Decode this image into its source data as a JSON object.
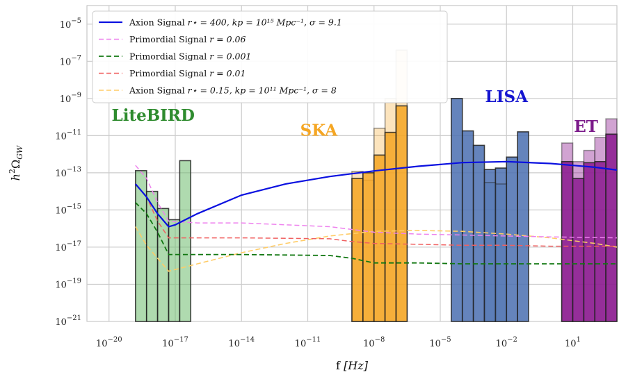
{
  "chart_data": {
    "type": "bar",
    "xscale": "log",
    "yscale": "log",
    "xlim": [
      1e-21,
      1000.0
    ],
    "ylim": [
      1e-21,
      0.0001
    ],
    "grid": true,
    "xlabel_main": "f ",
    "xlabel_unit": "[Hz]",
    "ylabel_main": "h",
    "ylabel_sup": "2",
    "ylabel_sym": "Ω",
    "ylabel_sub": "GW",
    "xticks": [
      {
        "exp": -20,
        "label": "10",
        "sup": "−20"
      },
      {
        "exp": -17,
        "label": "10",
        "sup": "−17"
      },
      {
        "exp": -14,
        "label": "10",
        "sup": "−14"
      },
      {
        "exp": -11,
        "label": "10",
        "sup": "−11"
      },
      {
        "exp": -8,
        "label": "10",
        "sup": "−8"
      },
      {
        "exp": -5,
        "label": "10",
        "sup": "−5"
      },
      {
        "exp": -2,
        "label": "10",
        "sup": "−2"
      },
      {
        "exp": 1,
        "label": "10",
        "sup": "1"
      }
    ],
    "yticks": [
      {
        "exp": -21,
        "label": "10",
        "sup": "−21"
      },
      {
        "exp": -19,
        "label": "10",
        "sup": "−19"
      },
      {
        "exp": -17,
        "label": "10",
        "sup": "−17"
      },
      {
        "exp": -15,
        "label": "10",
        "sup": "−15"
      },
      {
        "exp": -13,
        "label": "10",
        "sup": "−13"
      },
      {
        "exp": -11,
        "label": "10",
        "sup": "−11"
      },
      {
        "exp": -9,
        "label": "10",
        "sup": "−9"
      },
      {
        "exp": -7,
        "label": "10",
        "sup": "−7"
      },
      {
        "exp": -5,
        "label": "10",
        "sup": "−5"
      }
    ],
    "detectors": [
      {
        "name": "LiteBIRD",
        "color": "#3a9a3a",
        "fill": "#6dbb6d",
        "label_logx": -18.0,
        "label_logy": -10.2,
        "bars": [
          {
            "lo": -18.8,
            "hi": -18.3,
            "y": 1.3e-13,
            "alpha": 0.55
          },
          {
            "lo": -18.3,
            "hi": -17.8,
            "y": 1e-14,
            "alpha": 0.55
          },
          {
            "lo": -17.8,
            "hi": -17.3,
            "y": 1.2e-15,
            "alpha": 0.55
          },
          {
            "lo": -17.3,
            "hi": -16.8,
            "y": 3e-16,
            "alpha": 0.55
          },
          {
            "lo": -16.8,
            "hi": -16.3,
            "y": 4.5e-13,
            "alpha": 0.55
          }
        ]
      },
      {
        "name": "SKA",
        "color": "#f5a623",
        "fill": "#f5a623",
        "label_logx": -10.5,
        "label_logy": -11.0,
        "bars": [
          {
            "lo": -9.0,
            "hi": -8.5,
            "y": 1.2e-13,
            "alpha": 0.3
          },
          {
            "lo": -8.5,
            "hi": -8.0,
            "y": 4e-14,
            "alpha": 0.3
          },
          {
            "lo": -8.0,
            "hi": -7.5,
            "y": 2.5e-11,
            "alpha": 0.3
          },
          {
            "lo": -7.5,
            "hi": -7.0,
            "y": 1e-09,
            "alpha": 0.3
          },
          {
            "lo": -7.0,
            "hi": -6.5,
            "y": 4e-07,
            "alpha": 0.3
          },
          {
            "lo": -9.0,
            "hi": -8.5,
            "y": 5e-14,
            "alpha": 0.85
          },
          {
            "lo": -8.5,
            "hi": -8.0,
            "y": 1e-13,
            "alpha": 0.85
          },
          {
            "lo": -8.0,
            "hi": -7.5,
            "y": 9e-13,
            "alpha": 0.85
          },
          {
            "lo": -7.5,
            "hi": -7.0,
            "y": 1.5e-11,
            "alpha": 0.85
          },
          {
            "lo": -7.0,
            "hi": -6.5,
            "y": 4e-10,
            "alpha": 0.85
          }
        ]
      },
      {
        "name": "LISA",
        "color": "#4a6fb0",
        "fill": "#4a6fb0",
        "label_logx": -2.0,
        "label_logy": -9.2,
        "bars": [
          {
            "lo": -4.5,
            "hi": -4.0,
            "y": 1e-09,
            "alpha": 0.85
          },
          {
            "lo": -4.0,
            "hi": -3.5,
            "y": 1.8e-11,
            "alpha": 0.85
          },
          {
            "lo": -3.5,
            "hi": -3.0,
            "y": 3e-12,
            "alpha": 0.85
          },
          {
            "lo": -3.0,
            "hi": -2.5,
            "y": 1.5e-13,
            "alpha": 0.85
          },
          {
            "lo": -2.5,
            "hi": -2.0,
            "y": 1.8e-13,
            "alpha": 0.85
          },
          {
            "lo": -2.0,
            "hi": -1.5,
            "y": 7e-13,
            "alpha": 0.85
          },
          {
            "lo": -1.5,
            "hi": -1.0,
            "y": 1.6e-11,
            "alpha": 0.85
          },
          {
            "lo": -3.0,
            "hi": -2.5,
            "y": 3e-14,
            "alpha": 0.3
          },
          {
            "lo": -2.5,
            "hi": -2.0,
            "y": 2.5e-14,
            "alpha": 0.3
          }
        ]
      },
      {
        "name": "ET",
        "color": "#7a1a8a",
        "fill": "#8b1a8f",
        "label_logx": 1.6,
        "label_logy": -10.8,
        "bars": [
          {
            "lo": 0.5,
            "hi": 1.0,
            "y": 4e-12,
            "alpha": 0.4
          },
          {
            "lo": 1.0,
            "hi": 1.5,
            "y": 4e-13,
            "alpha": 0.4
          },
          {
            "lo": 1.5,
            "hi": 2.0,
            "y": 1.6e-12,
            "alpha": 0.4
          },
          {
            "lo": 2.0,
            "hi": 2.5,
            "y": 8e-12,
            "alpha": 0.4
          },
          {
            "lo": 2.5,
            "hi": 3.0,
            "y": 8e-11,
            "alpha": 0.4
          },
          {
            "lo": 0.5,
            "hi": 1.0,
            "y": 4e-13,
            "alpha": 0.85
          },
          {
            "lo": 1.0,
            "hi": 1.5,
            "y": 5e-14,
            "alpha": 0.85
          },
          {
            "lo": 1.5,
            "hi": 2.0,
            "y": 3.5e-13,
            "alpha": 0.85
          },
          {
            "lo": 2.0,
            "hi": 2.5,
            "y": 4e-13,
            "alpha": 0.85
          },
          {
            "lo": 2.5,
            "hi": 3.0,
            "y": 1.2e-11,
            "alpha": 0.85
          }
        ]
      }
    ],
    "series": [
      {
        "name": "Axion Signal",
        "name_math": "r⋆ = 400, kp = 10¹⁵ Mpc⁻¹, σ = 9.1",
        "color": "#0a10e0",
        "dash": "",
        "width": 2.2,
        "logx": [
          -18.8,
          -18.3,
          -17.8,
          -17.3,
          -17.0,
          -16.0,
          -14.0,
          -12.0,
          -10.0,
          -8.0,
          -6.0,
          -4.0,
          -2.0,
          0.0,
          1.0,
          2.0,
          3.0
        ],
        "logy": [
          -13.6,
          -14.3,
          -15.2,
          -15.9,
          -15.8,
          -15.2,
          -14.2,
          -13.6,
          -13.2,
          -12.9,
          -12.65,
          -12.45,
          -12.4,
          -12.5,
          -12.6,
          -12.7,
          -12.85
        ]
      },
      {
        "name": "Primordial Signal",
        "name_math": "r = 0.06",
        "color": "#ee82ee",
        "dash": "7,4",
        "width": 1.5,
        "logx": [
          -18.8,
          -18.3,
          -17.8,
          -17.3,
          -16.0,
          -14.0,
          -10.0,
          -8.0,
          -6.0,
          -4.0,
          -2.0,
          0.0,
          3.0
        ],
        "logy": [
          -12.6,
          -13.3,
          -14.6,
          -15.6,
          -15.7,
          -15.7,
          -15.9,
          -16.2,
          -16.3,
          -16.35,
          -16.4,
          -16.45,
          -16.5
        ]
      },
      {
        "name": "Primordial Signal",
        "name_math": "r = 0.001",
        "color": "#117711",
        "dash": "7,4",
        "width": 1.8,
        "logx": [
          -18.8,
          -18.3,
          -17.8,
          -17.3,
          -16.0,
          -14.0,
          -10.0,
          -9.0,
          -8.0,
          -6.0,
          -4.0,
          -2.0,
          0.0,
          3.0
        ],
        "logy": [
          -14.6,
          -15.2,
          -16.2,
          -17.4,
          -17.4,
          -17.4,
          -17.45,
          -17.6,
          -17.85,
          -17.85,
          -17.9,
          -17.9,
          -17.9,
          -17.9
        ]
      },
      {
        "name": "Primordial Signal",
        "name_math": "r = 0.01",
        "color": "#f06060",
        "dash": "7,4",
        "width": 1.5,
        "logx": [
          -18.8,
          -18.3,
          -17.8,
          -17.3,
          -16.0,
          -14.0,
          -10.0,
          -9.0,
          -8.0,
          -6.0,
          -4.0,
          -2.0,
          0.0,
          3.0
        ],
        "logy": [
          -13.6,
          -14.3,
          -15.6,
          -16.5,
          -16.5,
          -16.5,
          -16.55,
          -16.7,
          -16.8,
          -16.85,
          -16.9,
          -16.9,
          -16.95,
          -16.95
        ]
      },
      {
        "name": "Axion Signal",
        "name_math": "r⋆ = 0.15, kp = 10¹¹ Mpc⁻¹, σ = 8",
        "color": "#ffcc66",
        "dash": "7,4",
        "width": 1.6,
        "logx": [
          -18.8,
          -18.3,
          -17.8,
          -17.3,
          -16.0,
          -14.0,
          -12.0,
          -10.0,
          -8.0,
          -6.0,
          -4.0,
          -2.0,
          0.0,
          2.0,
          3.0
        ],
        "logy": [
          -15.9,
          -16.9,
          -17.6,
          -18.3,
          -17.9,
          -17.3,
          -16.8,
          -16.4,
          -16.15,
          -16.1,
          -16.15,
          -16.3,
          -16.5,
          -16.8,
          -17.0
        ]
      }
    ],
    "legend": {
      "placement": "top-left",
      "entries": [
        {
          "prefix": "Axion Signal ",
          "math": "r⋆ = 400, kp = 10¹⁵ Mpc⁻¹, σ = 9.1"
        },
        {
          "prefix": "Primordial Signal ",
          "math": "r = 0.06"
        },
        {
          "prefix": "Primordial Signal ",
          "math": "r = 0.001"
        },
        {
          "prefix": "Primordial Signal ",
          "math": "r = 0.01"
        },
        {
          "prefix": "Axion Signal ",
          "math": "r⋆ = 0.15, kp = 10¹¹ Mpc⁻¹, σ = 8"
        }
      ]
    }
  }
}
